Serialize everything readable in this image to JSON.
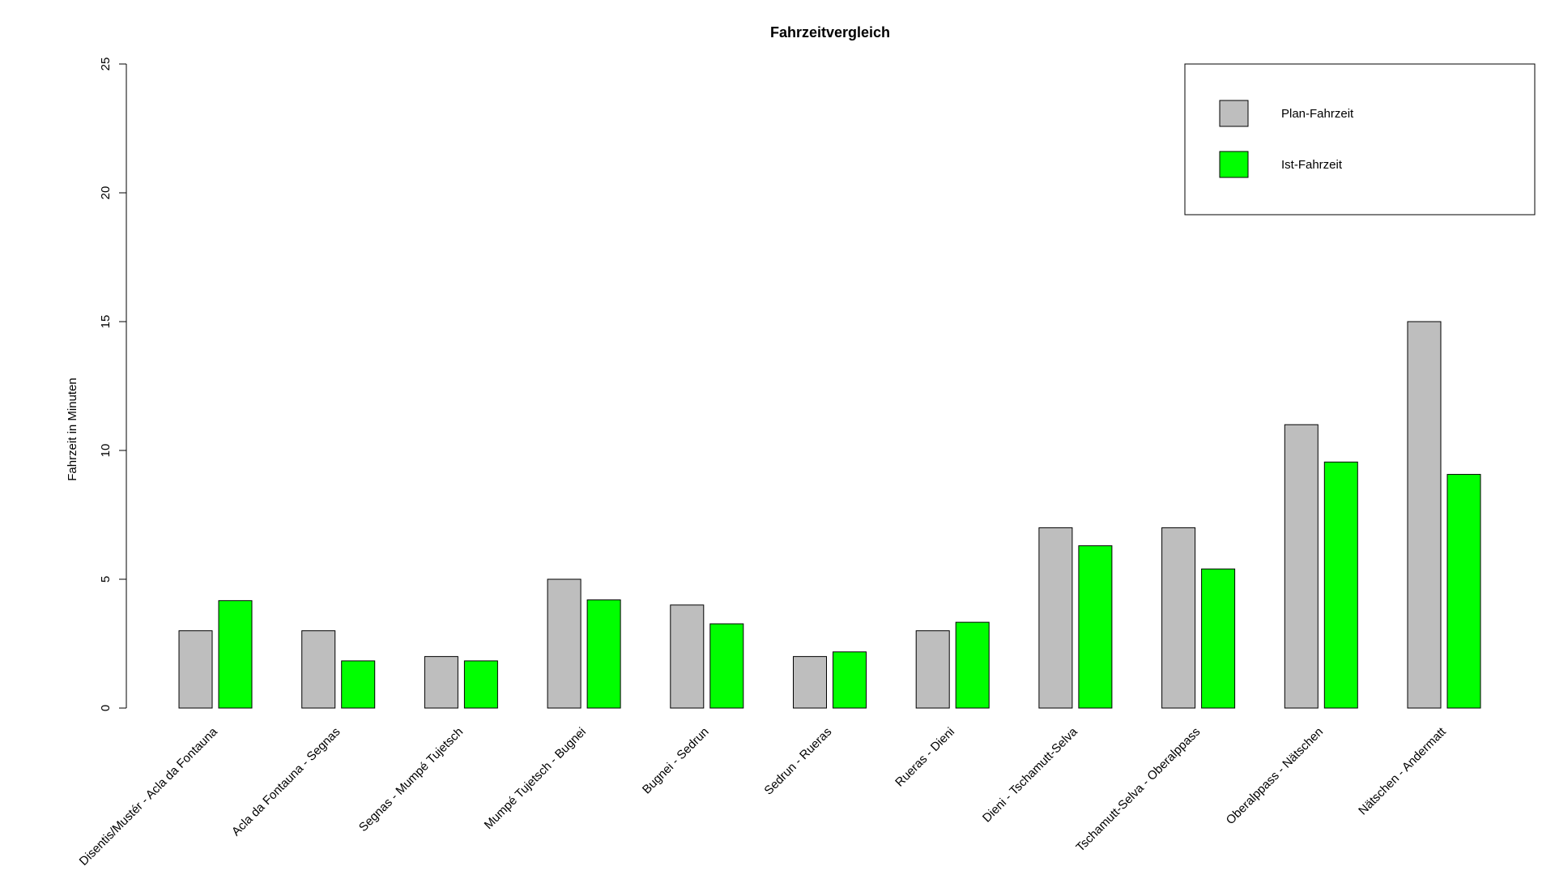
{
  "chart_data": {
    "type": "bar",
    "title": "Fahrzeitvergleich",
    "xlabel": "",
    "ylabel": "Fahrzeit in Minuten",
    "ylim": [
      0,
      25
    ],
    "yticks": [
      0,
      5,
      10,
      15,
      20,
      25
    ],
    "grid": false,
    "legend_position": "top-right",
    "categories": [
      "Disentis/Mustér - Acla da Fontauna",
      "Acla da Fontauna - Segnas",
      "Segnas - Mumpé Tujetsch",
      "Mumpé Tujetsch - Bugnei",
      "Bugnei - Sedrun",
      "Sedrun - Rueras",
      "Rueras - Dieni",
      "Dieni - Tschamutt-Selva",
      "Tschamutt-Selva - Oberalppass",
      "Oberalppass - Nätschen",
      "Nätschen - Andermatt"
    ],
    "series": [
      {
        "name": "Plan-Fahrzeit",
        "color": "#bebebe",
        "values": [
          3,
          3,
          2,
          5,
          4,
          2,
          3,
          7,
          7,
          11,
          15
        ]
      },
      {
        "name": "Ist-Fahrzeit",
        "color": "#00ff00",
        "values": [
          4.17,
          1.83,
          1.83,
          4.2,
          3.27,
          2.18,
          3.33,
          6.3,
          5.4,
          9.55,
          9.07
        ]
      }
    ]
  }
}
